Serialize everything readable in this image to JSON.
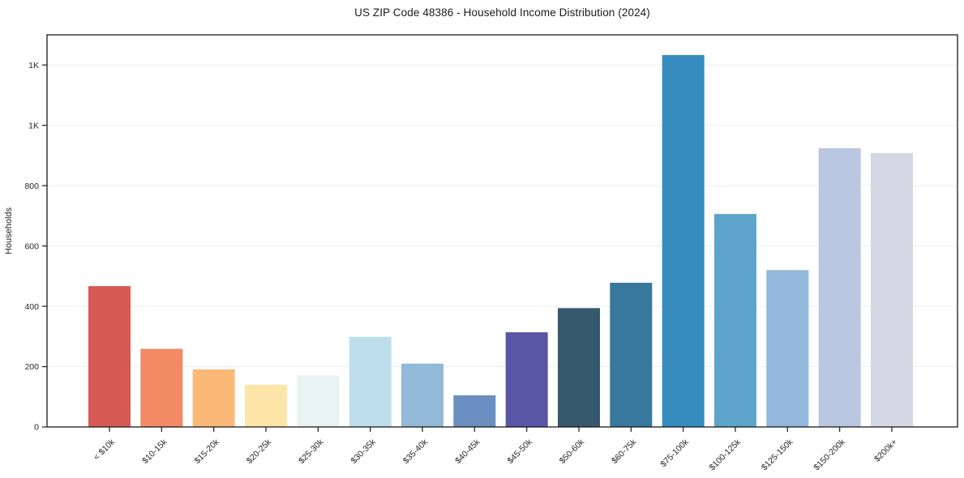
{
  "page": {
    "background": "#ffffff"
  },
  "chart_data": {
    "type": "bar",
    "title": "US ZIP Code 48386 - Household Income Distribution (2024)",
    "xlabel": "",
    "ylabel": "Households",
    "categories": [
      "< $10k",
      "$10-15k",
      "$15-20k",
      "$20-25k",
      "$25-30k",
      "$30-35k",
      "$35-40k",
      "$40-45k",
      "$45-50k",
      "$50-60k",
      "$60-75k",
      "$75-100k",
      "$100-125k",
      "$125-150k",
      "$150-200k",
      "$200k+"
    ],
    "values": [
      467,
      259,
      191,
      140,
      171,
      299,
      210,
      105,
      314,
      394,
      478,
      1233,
      706,
      520,
      924,
      908
    ],
    "bar_colors": [
      "#d65a53",
      "#f28a65",
      "#fbb978",
      "#fde5a7",
      "#e9f3f1",
      "#bcdfeb",
      "#92bad8",
      "#6a8fc0",
      "#5956a6",
      "#36596e",
      "#38789d",
      "#368cbf",
      "#5ca4ca",
      "#93b7da",
      "#b9c8e0",
      "#d6d7e4"
    ],
    "ylim": [
      0,
      1300
    ],
    "yticks": [
      {
        "value": 0,
        "label": "0"
      },
      {
        "value": 200,
        "label": "200"
      },
      {
        "value": 400,
        "label": "400"
      },
      {
        "value": 600,
        "label": "600"
      },
      {
        "value": 800,
        "label": "800"
      },
      {
        "value": 1000,
        "label": "1K"
      },
      {
        "value": 1200,
        "label": "1K"
      }
    ],
    "grid": "horizontal",
    "legend_position": "none",
    "x_tick_rotation_deg": 45,
    "axis_color": "#1a1a1a",
    "grid_color": "#ecedf3",
    "tick_label_color": "#262626"
  }
}
